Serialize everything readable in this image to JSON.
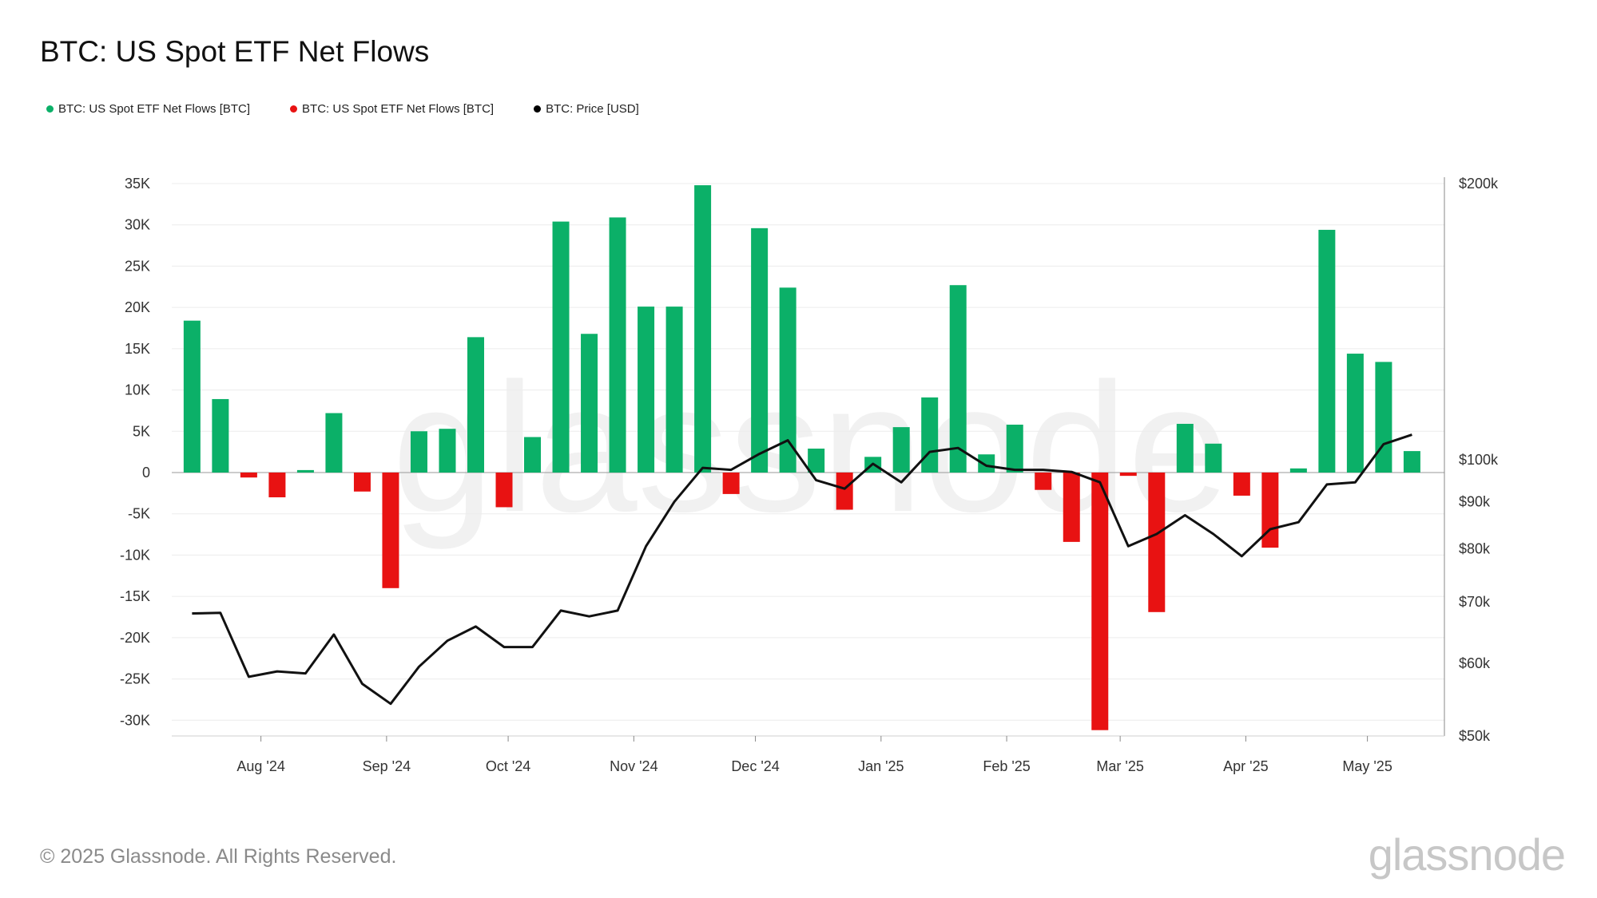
{
  "page": {
    "copyright": "© 2025 Glassnode. All Rights Reserved.",
    "brand": "glassnode",
    "watermark": "glassnode"
  },
  "chart_data": {
    "type": "bar",
    "title": "BTC: US Spot ETF Net Flows",
    "legend": [
      {
        "label": "BTC: US Spot ETF Net Flows [BTC]",
        "color": "#0bb068"
      },
      {
        "label": "BTC: US Spot ETF Net Flows [BTC]",
        "color": "#e81212"
      },
      {
        "label": "BTC: Price [USD]",
        "color": "#000000"
      }
    ],
    "legend_position": "top-left",
    "grid": true,
    "colors": {
      "positive": "#0bb068",
      "negative": "#e81212",
      "price": "#111111"
    },
    "y_left": {
      "range": [
        -32000,
        35000
      ],
      "ticks": [
        35000,
        30000,
        25000,
        20000,
        15000,
        10000,
        5000,
        0,
        -5000,
        -10000,
        -15000,
        -20000,
        -25000,
        -30000
      ],
      "tick_labels": [
        "35K",
        "30K",
        "25K",
        "20K",
        "15K",
        "10K",
        "5K",
        "0",
        "-5K",
        "-10K",
        "-15K",
        "-20K",
        "-25K",
        "-30K"
      ]
    },
    "y_right": {
      "scale": "log",
      "range": [
        50000,
        200000
      ],
      "ticks": [
        200000,
        100000,
        90000,
        80000,
        70000,
        60000,
        50000
      ],
      "tick_labels": [
        "$200k",
        "$100k",
        "$90k",
        "$80k",
        "$70k",
        "$60k",
        "$50k"
      ]
    },
    "x_axis": {
      "ticks": [
        "2024-08-01",
        "2024-09-01",
        "2024-10-01",
        "2024-11-01",
        "2024-12-01",
        "2025-01-01",
        "2025-02-01",
        "2025-03-01",
        "2025-04-01",
        "2025-05-01"
      ],
      "tick_labels": [
        "Aug '24",
        "Sep '24",
        "Oct '24",
        "Nov '24",
        "Dec '24",
        "Jan '25",
        "Feb '25",
        "Mar '25",
        "Apr '25",
        "May '25"
      ]
    },
    "x": [
      "2024-07-15",
      "2024-07-22",
      "2024-07-29",
      "2024-08-05",
      "2024-08-12",
      "2024-08-19",
      "2024-08-26",
      "2024-09-02",
      "2024-09-09",
      "2024-09-16",
      "2024-09-23",
      "2024-09-30",
      "2024-10-07",
      "2024-10-14",
      "2024-10-21",
      "2024-10-28",
      "2024-11-04",
      "2024-11-11",
      "2024-11-18",
      "2024-11-25",
      "2024-12-02",
      "2024-12-09",
      "2024-12-16",
      "2024-12-23",
      "2024-12-30",
      "2025-01-06",
      "2025-01-13",
      "2025-01-20",
      "2025-01-27",
      "2025-02-03",
      "2025-02-10",
      "2025-02-17",
      "2025-02-24",
      "2025-03-03",
      "2025-03-10",
      "2025-03-17",
      "2025-03-24",
      "2025-03-31",
      "2025-04-07",
      "2025-04-14",
      "2025-04-21",
      "2025-04-28",
      "2025-05-05",
      "2025-05-12"
    ],
    "series": [
      {
        "name": "BTC: US Spot ETF Net Flows [BTC]",
        "type": "bar",
        "values": [
          18400,
          8900,
          -600,
          -3000,
          300,
          7200,
          -2300,
          -14000,
          5000,
          5300,
          16400,
          -4200,
          4300,
          30400,
          16800,
          30900,
          20100,
          20100,
          34800,
          -2600,
          29600,
          22400,
          2900,
          -4500,
          1900,
          5500,
          9100,
          22700,
          2200,
          5800,
          -2100,
          -8400,
          -31200,
          -400,
          -16900,
          5900,
          3500,
          -2800,
          -9100,
          500,
          29400,
          14400,
          13400,
          2600
        ]
      },
      {
        "name": "BTC: Price [USD]",
        "type": "line",
        "axis": "right",
        "values": [
          68000,
          68100,
          58000,
          58800,
          58500,
          64500,
          57000,
          54200,
          59500,
          63500,
          65800,
          62500,
          62500,
          68500,
          67500,
          68500,
          80500,
          90000,
          98000,
          97500,
          101500,
          105000,
          95000,
          93000,
          99000,
          94500,
          102000,
          103000,
          98500,
          97500,
          97500,
          97000,
          94500,
          80500,
          83000,
          87000,
          83000,
          78500,
          84000,
          85500,
          94000,
          94500,
          104000,
          106500
        ]
      }
    ]
  }
}
